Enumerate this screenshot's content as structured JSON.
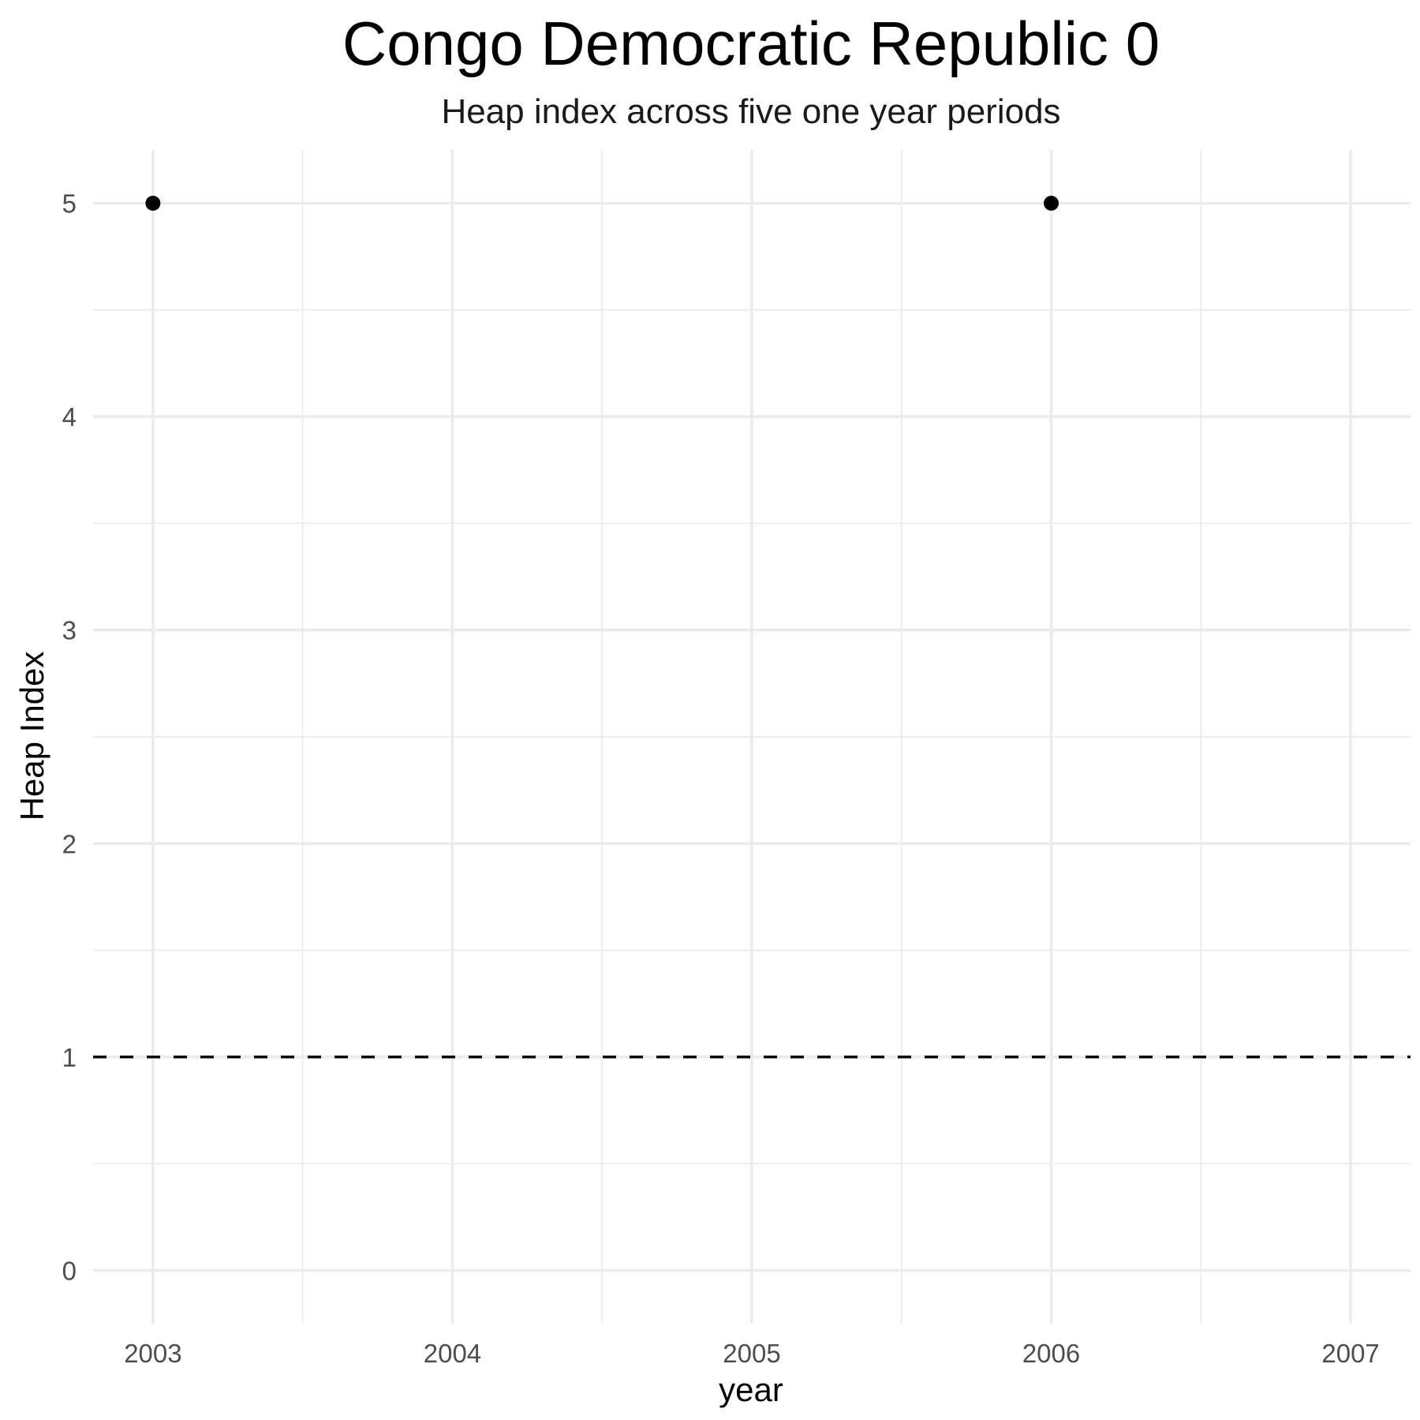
{
  "chart_data": {
    "type": "scatter",
    "title": "Congo Democratic Republic 0",
    "subtitle": "Heap index across five one year periods",
    "xlabel": "year",
    "ylabel": "Heap Index",
    "x_ticks": [
      "2003",
      "2004",
      "2005",
      "2006",
      "2007"
    ],
    "y_ticks": [
      "0",
      "1",
      "2",
      "3",
      "4",
      "5"
    ],
    "xlim": [
      2002.8,
      2007.2
    ],
    "ylim": [
      -0.25,
      5.25
    ],
    "grid": true,
    "legend": "none",
    "reference_line": {
      "y": 1,
      "style": "dashed",
      "color": "#000000"
    },
    "series": [
      {
        "x": [
          "2003",
          "2006"
        ],
        "values": [
          5,
          5
        ],
        "color": "#000000"
      }
    ]
  }
}
